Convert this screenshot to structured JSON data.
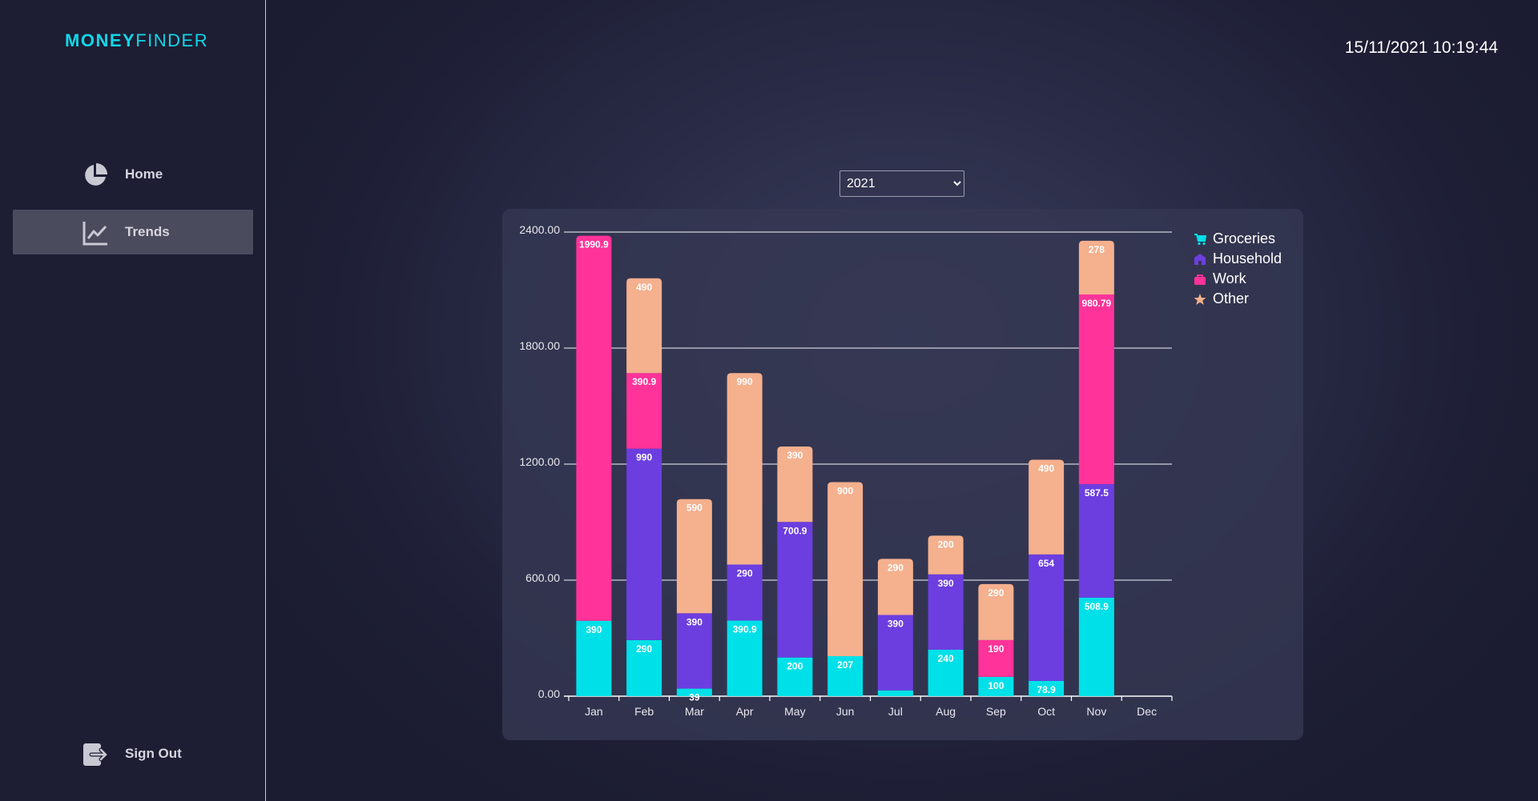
{
  "app": {
    "logo_bold": "MONEY",
    "logo_thin": "FINDER",
    "clock": "15/11/2021 10:19:44"
  },
  "sidebar": {
    "items": [
      {
        "label": "Home",
        "icon": "pie-chart-icon"
      },
      {
        "label": "Trends",
        "icon": "line-chart-icon",
        "active": true
      }
    ],
    "sign_out": {
      "label": "Sign Out",
      "icon": "sign-out-icon"
    }
  },
  "year_select": {
    "selected": "2021"
  },
  "legend": [
    {
      "name": "Groceries",
      "icon": "cart-icon",
      "color": "#00e0e8"
    },
    {
      "name": "Household",
      "icon": "house-icon",
      "color": "#6c3ee0"
    },
    {
      "name": "Work",
      "icon": "briefcase-icon",
      "color": "#ff3399"
    },
    {
      "name": "Other",
      "icon": "star-icon",
      "color": "#f5b08e"
    }
  ],
  "chart_data": {
    "type": "bar",
    "stacked": true,
    "categories": [
      "Jan",
      "Feb",
      "Mar",
      "Apr",
      "May",
      "Jun",
      "Jul",
      "Aug",
      "Sep",
      "Oct",
      "Nov",
      "Dec"
    ],
    "series": [
      {
        "name": "Groceries",
        "color": "#00e0e8",
        "values": [
          390,
          290,
          39,
          390.9,
          200,
          207,
          30,
          240,
          100,
          78.9,
          508.9,
          0
        ]
      },
      {
        "name": "Household",
        "color": "#6c3ee0",
        "values": [
          0,
          990,
          390,
          290,
          700.9,
          0,
          390,
          390,
          0,
          654,
          587.5,
          0
        ]
      },
      {
        "name": "Work",
        "color": "#ff3399",
        "values": [
          1990.9,
          390.9,
          0,
          0,
          0,
          0,
          0,
          0,
          190,
          0,
          980.79,
          0
        ]
      },
      {
        "name": "Other",
        "color": "#f5b08e",
        "values": [
          0,
          490,
          590,
          990,
          390,
          900,
          290,
          200,
          290,
          490,
          278,
          0
        ]
      }
    ],
    "value_labels": [
      [
        "390",
        "290",
        "39",
        "390.9",
        "200",
        "207",
        "",
        "240",
        "100",
        "78.9",
        "508.9",
        ""
      ],
      [
        "",
        "990",
        "390",
        "290",
        "700.9",
        "",
        "390",
        "390",
        "",
        "654",
        "587.5",
        ""
      ],
      [
        "1990.9",
        "390.9",
        "",
        "",
        "",
        "",
        "",
        "",
        "190",
        "",
        "980.79",
        ""
      ],
      [
        "",
        "490",
        "590",
        "990",
        "390",
        "900",
        "290",
        "200",
        "290",
        "490",
        "278",
        ""
      ]
    ],
    "yticks": [
      "0.00",
      "600.00",
      "1200.00",
      "1800.00",
      "2400.00"
    ],
    "ylim": [
      0,
      2400
    ],
    "grid": true,
    "legend_position": "top-right"
  }
}
